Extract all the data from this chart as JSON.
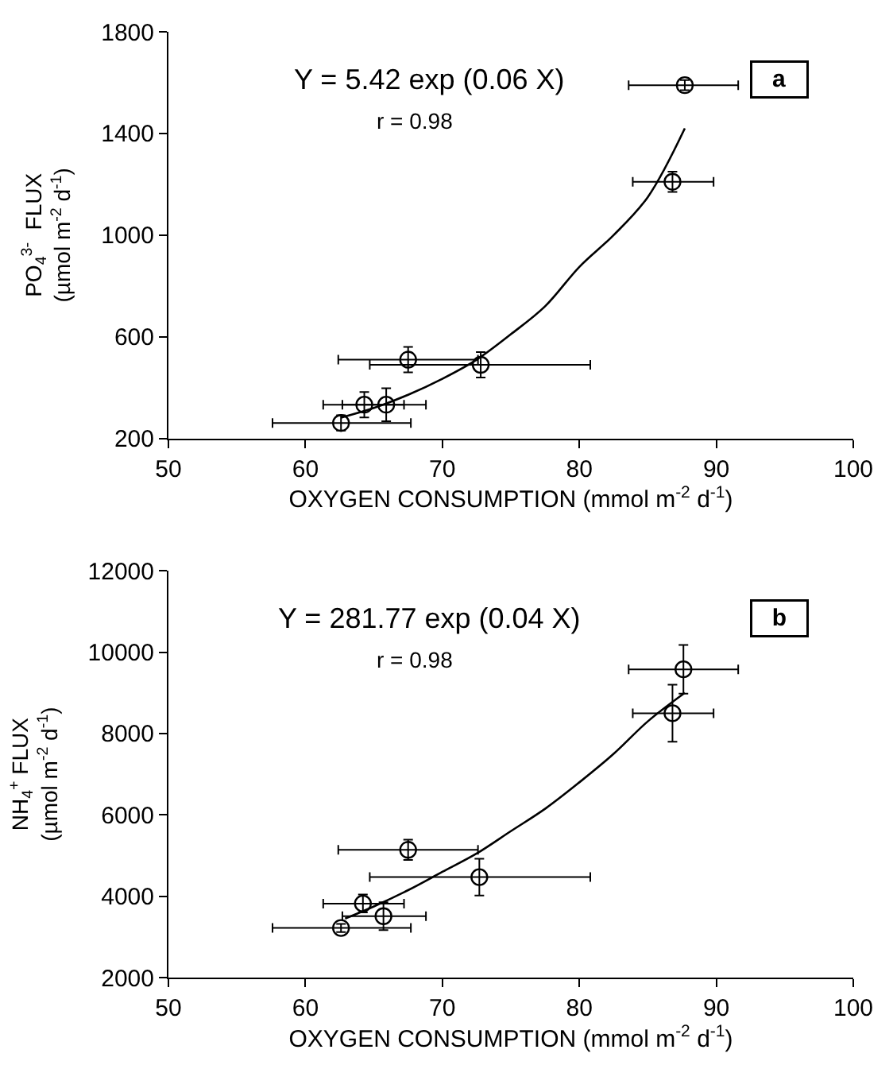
{
  "chart_data": [
    {
      "type": "scatter",
      "xlabel": "OXYGEN CONSUMPTION (mmol m$^{-2}$ d$^{-1}$)",
      "ylabel": "PO$_{4}$$^{3-}$  FLUX\n(µmol m$^{-2}$ d$^{-1}$)",
      "xlim": [
        50,
        100
      ],
      "xticks": [
        50,
        60,
        70,
        80,
        90,
        100
      ],
      "ylim": [
        200,
        1800
      ],
      "yticks": [
        200,
        600,
        1000,
        1400,
        1800
      ],
      "grid": false,
      "marker": "circle",
      "annotations": [
        "Y = 5.42 exp (0.06 X)",
        "r = 0.98",
        "a"
      ],
      "series": [
        {
          "color": "#000000",
          "x": [
            87.7,
            86.8,
            67.5,
            72.8,
            64.3,
            65.9,
            62.6
          ],
          "values": [
            1590,
            1210,
            510,
            490,
            333,
            333,
            261
          ],
          "errors": [
            20,
            40,
            50,
            50,
            50,
            65,
            30
          ],
          "xerrors": [
            [
              83.6,
              91.6
            ],
            [
              83.9,
              89.8
            ],
            [
              62.4,
              72.6
            ],
            [
              64.7,
              80.8
            ],
            [
              61.3,
              67.2
            ],
            [
              62.7,
              68.8
            ],
            [
              57.6,
              67.7
            ]
          ]
        },
        {
          "type": "line",
          "marker": "none",
          "color": "#000000",
          "x": [
            62.6,
            65,
            67.5,
            70,
            72.5,
            75,
            77.5,
            80,
            82.5,
            85,
            87.7
          ],
          "values": [
            282,
            320,
            372,
            435,
            510,
            610,
            720,
            875,
            1000,
            1150,
            1420
          ]
        }
      ]
    },
    {
      "type": "scatter",
      "xlabel": "OXYGEN CONSUMPTION (mmol m$^{-2}$ d$^{-1}$)",
      "ylabel": "NH$_{4}$$^{+}$ FLUX\n(µmol m$^{-2}$ d$^{-1}$)",
      "xlim": [
        50,
        100
      ],
      "xticks": [
        50,
        60,
        70,
        80,
        90,
        100
      ],
      "ylim": [
        2000,
        12000
      ],
      "yticks": [
        2000,
        4000,
        6000,
        8000,
        10000,
        12000
      ],
      "grid": false,
      "marker": "circle",
      "annotations": [
        "Y = 281.77 exp (0.04 X)",
        "r = 0.98",
        "b"
      ],
      "series": [
        {
          "color": "#000000",
          "x": [
            87.6,
            86.8,
            67.5,
            72.7,
            64.2,
            65.7,
            62.6
          ],
          "values": [
            9580,
            8500,
            5140,
            4470,
            3820,
            3510,
            3220
          ],
          "errors": [
            600,
            700,
            250,
            450,
            220,
            340,
            100
          ],
          "xerrors": [
            [
              83.6,
              91.6
            ],
            [
              83.9,
              89.8
            ],
            [
              62.4,
              72.6
            ],
            [
              64.7,
              80.8
            ],
            [
              61.3,
              67.2
            ],
            [
              62.7,
              68.8
            ],
            [
              57.6,
              67.7
            ]
          ]
        },
        {
          "type": "line",
          "marker": "none",
          "color": "#000000",
          "x": [
            62.9,
            65,
            67.5,
            70,
            72.5,
            75,
            77.5,
            80,
            82.5,
            85,
            87.7
          ],
          "values": [
            3450,
            3750,
            4150,
            4600,
            5050,
            5600,
            6150,
            6800,
            7500,
            8300,
            9000
          ]
        }
      ]
    }
  ]
}
